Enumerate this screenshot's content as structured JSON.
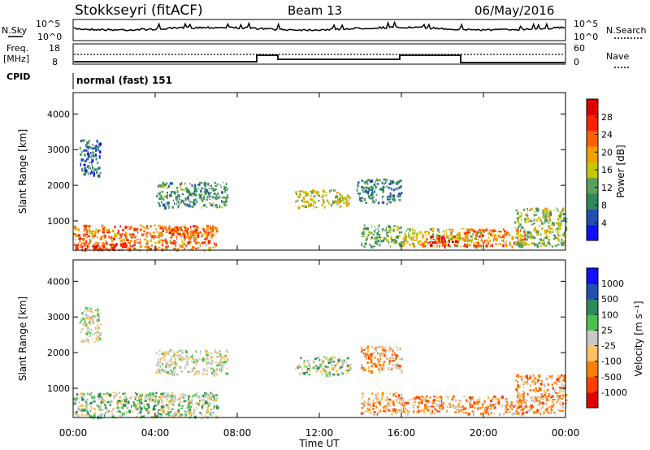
{
  "header": {
    "station": "Stokkseyri (fitACF)",
    "beam": "Beam 13",
    "date": "06/May/2016"
  },
  "top_panels": {
    "nsky_label": "N.Sky",
    "nsky_ticks": [
      "10^5",
      "10^0"
    ],
    "nsearch_label": "N.Search",
    "nsearch_ticks": [
      "10^5",
      "10^0"
    ],
    "freq_label_1": "Freq.",
    "freq_label_2": "[MHz]",
    "freq_ticks": [
      "18",
      "8"
    ],
    "nave_label": "Nave",
    "nave_ticks": [
      "60",
      "0"
    ],
    "cpid_label": "CPID",
    "cpid_value": "normal (fast) 151"
  },
  "colors": {
    "power": [
      "#1010ff",
      "#2050b0",
      "#2e8a5a",
      "#5aa05a",
      "#c8c800",
      "#f0a000",
      "#ff6000",
      "#ff2000",
      "#e00000"
    ],
    "velocity": [
      "#e00000",
      "#ff4000",
      "#ff8000",
      "#ffc060",
      "#c8c8c8",
      "#4cc04c",
      "#2e8a5a",
      "#2050b0",
      "#1010ff"
    ]
  },
  "chart_data": [
    {
      "type": "heatmap",
      "name": "power",
      "xlabel": "",
      "ylabel": "Slant Range [km]",
      "y_ticks": [
        "1000",
        "2000",
        "3000",
        "4000"
      ],
      "ylim": [
        180,
        4600
      ],
      "colorbar_label": "Power [dB]",
      "colorbar_ticks": [
        "4",
        "8",
        "12",
        "16",
        "20",
        "24",
        "28"
      ],
      "colorbar_range": [
        0,
        32
      ],
      "regions": [
        {
          "x": [
            0.0,
            7.0
          ],
          "y": [
            200,
            900
          ],
          "level": 22
        },
        {
          "x": [
            0.0,
            3.0
          ],
          "y": [
            200,
            400
          ],
          "level": 26
        },
        {
          "x": [
            4.5,
            7.0
          ],
          "y": [
            650,
            850
          ],
          "level": 24
        },
        {
          "x": [
            0.3,
            1.3
          ],
          "y": [
            2300,
            3300
          ],
          "level": 6
        },
        {
          "x": [
            4.0,
            7.5
          ],
          "y": [
            1400,
            2100
          ],
          "level": 10
        },
        {
          "x": [
            10.8,
            13.5
          ],
          "y": [
            1400,
            1900
          ],
          "level": 16
        },
        {
          "x": [
            13.8,
            16.0
          ],
          "y": [
            1500,
            2200
          ],
          "level": 9
        },
        {
          "x": [
            14.0,
            16.0
          ],
          "y": [
            300,
            900
          ],
          "level": 12
        },
        {
          "x": [
            16.0,
            20.0
          ],
          "y": [
            300,
            800
          ],
          "level": 16
        },
        {
          "x": [
            17.0,
            18.8
          ],
          "y": [
            300,
            600
          ],
          "level": 28
        },
        {
          "x": [
            19.0,
            22.0
          ],
          "y": [
            300,
            800
          ],
          "level": 22
        },
        {
          "x": [
            21.5,
            24.0
          ],
          "y": [
            300,
            1400
          ],
          "level": 14
        }
      ]
    },
    {
      "type": "heatmap",
      "name": "velocity",
      "xlabel": "Time UT",
      "x_ticks": [
        "00:00",
        "04:00",
        "08:00",
        "12:00",
        "16:00",
        "20:00",
        "00:00"
      ],
      "xlim": [
        0,
        24
      ],
      "ylabel": "Slant Range [km]",
      "y_ticks": [
        "1000",
        "2000",
        "3000",
        "4000"
      ],
      "ylim": [
        180,
        4600
      ],
      "colorbar_label": "Velocity [m s⁻¹]",
      "colorbar_ticks": [
        "1000",
        "500",
        "100",
        "25",
        "-25",
        "-100",
        "-500",
        "-1000"
      ],
      "regions": [
        {
          "x": [
            0.0,
            7.0
          ],
          "y": [
            200,
            900
          ],
          "level": "green"
        },
        {
          "x": [
            3.0,
            7.0
          ],
          "y": [
            650,
            850
          ],
          "level": "grey"
        },
        {
          "x": [
            0.3,
            1.3
          ],
          "y": [
            2300,
            3300
          ],
          "level": "grey"
        },
        {
          "x": [
            4.0,
            7.5
          ],
          "y": [
            1400,
            2100
          ],
          "level": "grey"
        },
        {
          "x": [
            10.8,
            13.5
          ],
          "y": [
            1400,
            1900
          ],
          "level": "green"
        },
        {
          "x": [
            14.0,
            16.0
          ],
          "y": [
            1500,
            2200
          ],
          "level": "orange"
        },
        {
          "x": [
            14.0,
            16.0
          ],
          "y": [
            300,
            900
          ],
          "level": "orange"
        },
        {
          "x": [
            16.0,
            22.0
          ],
          "y": [
            300,
            800
          ],
          "level": "orange"
        },
        {
          "x": [
            21.5,
            24.0
          ],
          "y": [
            300,
            1400
          ],
          "level": "orange"
        }
      ]
    }
  ]
}
